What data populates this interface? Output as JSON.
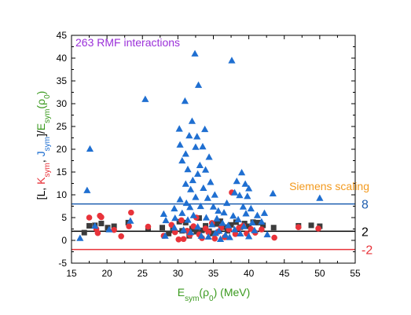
{
  "chart_data": {
    "type": "scatter",
    "title": "263 RMF interactions",
    "annotation": "Siemens scaling",
    "xlabel": {
      "base": "E",
      "sub": "sym",
      "arg": "(ρ",
      "arg_sub": "0",
      "tail": ") (MeV)"
    },
    "ylabel": {
      "parts": [
        {
          "text": "[L, ",
          "color": "#000000"
        },
        {
          "text": "K",
          "sub": "sym",
          "color": "#e8333a"
        },
        {
          "text": ", ",
          "color": "#000000"
        },
        {
          "text": "J",
          "sub": "sym",
          "color": "#1f6fd1"
        },
        {
          "text": "]/",
          "color": "#000000"
        },
        {
          "text": "E",
          "sub": "sym",
          "color": "#3a9a1e"
        },
        {
          "text": "(ρ",
          "color": "#3a9a1e"
        },
        {
          "text": "",
          "sub": "0",
          "color": "#3a9a1e"
        },
        {
          "text": ")",
          "color": "#3a9a1e"
        }
      ]
    },
    "xlim": [
      15,
      55
    ],
    "ylim": [
      -5,
      45
    ],
    "xticks": [
      15,
      20,
      25,
      30,
      35,
      40,
      45,
      50,
      55
    ],
    "yticks": [
      -5,
      0,
      5,
      10,
      15,
      20,
      25,
      30,
      35,
      40,
      45
    ],
    "colors": {
      "title": "#9b30d9",
      "annotation": "#f39a1e",
      "xlabel": "#3a9a1e"
    },
    "hlines": [
      {
        "y": 8,
        "label": "8",
        "color": "#1f5fb0"
      },
      {
        "y": 2,
        "label": "2",
        "color": "#000000"
      },
      {
        "y": -2,
        "label": "-2",
        "color": "#e8333a"
      }
    ],
    "series": [
      {
        "marker": "square",
        "color": "#3c3c3c",
        "points": [
          [
            16.8,
            1.7
          ],
          [
            17.5,
            3.2
          ],
          [
            18.3,
            3.3
          ],
          [
            19.2,
            3.7
          ],
          [
            20.1,
            2.8
          ],
          [
            21.0,
            3.1
          ],
          [
            23.0,
            3.9
          ],
          [
            25.8,
            2.7
          ],
          [
            27.8,
            2.8
          ],
          [
            28.7,
            1.5
          ],
          [
            29.3,
            2.2
          ],
          [
            30.2,
            4.1
          ],
          [
            30.6,
            2.1
          ],
          [
            31.1,
            3.9
          ],
          [
            31.6,
            1.0
          ],
          [
            32.0,
            2.6
          ],
          [
            32.6,
            1.9
          ],
          [
            33.0,
            4.9
          ],
          [
            33.4,
            2.2
          ],
          [
            33.9,
            3.2
          ],
          [
            34.4,
            2.0
          ],
          [
            34.9,
            1.5
          ],
          [
            35.5,
            3.6
          ],
          [
            36.0,
            4.2
          ],
          [
            36.6,
            2.9
          ],
          [
            37.0,
            2.1
          ],
          [
            37.5,
            3.4
          ],
          [
            38.2,
            4.0
          ],
          [
            38.8,
            2.9
          ],
          [
            39.4,
            3.7
          ],
          [
            40.0,
            3.1
          ],
          [
            40.6,
            4.0
          ],
          [
            41.3,
            3.9
          ],
          [
            42.0,
            3.3
          ],
          [
            43.5,
            2.8
          ],
          [
            47.0,
            3.2
          ],
          [
            48.8,
            3.3
          ],
          [
            50.0,
            3.1
          ]
        ]
      },
      {
        "marker": "circle",
        "color": "#e8333a",
        "points": [
          [
            17.5,
            5.0
          ],
          [
            18.5,
            2.5
          ],
          [
            19.0,
            5.4
          ],
          [
            19.2,
            5.1
          ],
          [
            18.7,
            1.6
          ],
          [
            21.0,
            2.3
          ],
          [
            22.0,
            0.9
          ],
          [
            23.4,
            6.1
          ],
          [
            23.1,
            3.1
          ],
          [
            25.8,
            3.0
          ],
          [
            28.0,
            1.0
          ],
          [
            29.1,
            3.4
          ],
          [
            29.6,
            1.8
          ],
          [
            30.1,
            0.2
          ],
          [
            30.5,
            4.4
          ],
          [
            30.8,
            0.3
          ],
          [
            31.3,
            2.1
          ],
          [
            31.7,
            1.2
          ],
          [
            32.2,
            3.1
          ],
          [
            32.6,
            5.0
          ],
          [
            33.0,
            1.3
          ],
          [
            33.4,
            0.5
          ],
          [
            33.9,
            2.6
          ],
          [
            34.3,
            1.8
          ],
          [
            34.8,
            3.8
          ],
          [
            35.2,
            0.4
          ],
          [
            35.7,
            1.9
          ],
          [
            36.1,
            2.8
          ],
          [
            36.6,
            0.7
          ],
          [
            37.2,
            2.4
          ],
          [
            37.6,
            10.5
          ],
          [
            38.1,
            1.4
          ],
          [
            38.6,
            2.7
          ],
          [
            39.2,
            3.2
          ],
          [
            39.7,
            1.5
          ],
          [
            40.3,
            2.5
          ],
          [
            40.9,
            1.7
          ],
          [
            41.8,
            2.4
          ],
          [
            43.6,
            0.6
          ],
          [
            47.0,
            2.9
          ],
          [
            49.8,
            2.6
          ]
        ]
      },
      {
        "marker": "triangle",
        "color": "#1f6fd1",
        "points": [
          [
            16.2,
            0.5
          ],
          [
            17.2,
            11.0
          ],
          [
            17.6,
            20.1
          ],
          [
            18.3,
            3.2
          ],
          [
            20.3,
            2.4
          ],
          [
            23.3,
            4.3
          ],
          [
            25.4,
            31.0
          ],
          [
            28.0,
            5.8
          ],
          [
            28.3,
            4.4
          ],
          [
            28.2,
            1.0
          ],
          [
            29.5,
            7.0
          ],
          [
            29.6,
            4.9
          ],
          [
            29.5,
            2.8
          ],
          [
            30.2,
            24.5
          ],
          [
            30.3,
            21.0
          ],
          [
            30.3,
            9.0
          ],
          [
            30.6,
            17.5
          ],
          [
            30.6,
            6.0
          ],
          [
            30.8,
            2.3
          ],
          [
            31.0,
            30.6
          ],
          [
            31.1,
            19.0
          ],
          [
            31.1,
            12.4
          ],
          [
            31.2,
            8.2
          ],
          [
            31.4,
            15.6
          ],
          [
            31.4,
            4.5
          ],
          [
            31.6,
            23.0
          ],
          [
            31.7,
            7.3
          ],
          [
            31.8,
            11.2
          ],
          [
            31.8,
            1.8
          ],
          [
            32.0,
            26.2
          ],
          [
            32.1,
            13.2
          ],
          [
            32.2,
            5.5
          ],
          [
            32.4,
            41.0
          ],
          [
            32.5,
            20.5
          ],
          [
            32.5,
            9.5
          ],
          [
            32.7,
            22.8
          ],
          [
            32.8,
            14.6
          ],
          [
            32.8,
            3.0
          ],
          [
            32.9,
            34.1
          ],
          [
            33.1,
            16.5
          ],
          [
            33.2,
            7.5
          ],
          [
            33.3,
            1.0
          ],
          [
            33.5,
            20.6
          ],
          [
            33.6,
            11.5
          ],
          [
            33.8,
            24.4
          ],
          [
            33.9,
            15.5
          ],
          [
            34.0,
            5.0
          ],
          [
            34.2,
            9.3
          ],
          [
            34.3,
            0.8
          ],
          [
            34.4,
            18.3
          ],
          [
            34.6,
            12.8
          ],
          [
            34.8,
            3.5
          ],
          [
            35.0,
            7.4
          ],
          [
            35.2,
            10.0
          ],
          [
            35.3,
            1.6
          ],
          [
            35.5,
            4.8
          ],
          [
            35.7,
            6.5
          ],
          [
            35.8,
            2.1
          ],
          [
            36.0,
            0.3
          ],
          [
            36.3,
            3.8
          ],
          [
            36.5,
            6.1
          ],
          [
            36.7,
            1.2
          ],
          [
            36.9,
            8.2
          ],
          [
            37.1,
            3.3
          ],
          [
            37.3,
            0.7
          ],
          [
            37.6,
            39.5
          ],
          [
            37.8,
            5.4
          ],
          [
            38.0,
            10.5
          ],
          [
            38.0,
            2.4
          ],
          [
            38.3,
            13.0
          ],
          [
            38.5,
            4.6
          ],
          [
            38.7,
            9.9
          ],
          [
            38.8,
            1.5
          ],
          [
            39.0,
            14.9
          ],
          [
            39.2,
            7.4
          ],
          [
            39.3,
            3.1
          ],
          [
            39.5,
            12.4
          ],
          [
            39.6,
            5.9
          ],
          [
            39.8,
            9.7
          ],
          [
            40.0,
            11.4
          ],
          [
            40.0,
            0.9
          ],
          [
            40.3,
            7.0
          ],
          [
            40.5,
            3.9
          ],
          [
            40.8,
            2.2
          ],
          [
            41.2,
            5.5
          ],
          [
            41.8,
            4.1
          ],
          [
            42.2,
            6.0
          ],
          [
            42.6,
            1.3
          ],
          [
            43.4,
            10.3
          ],
          [
            50.0,
            9.3
          ]
        ]
      }
    ]
  }
}
